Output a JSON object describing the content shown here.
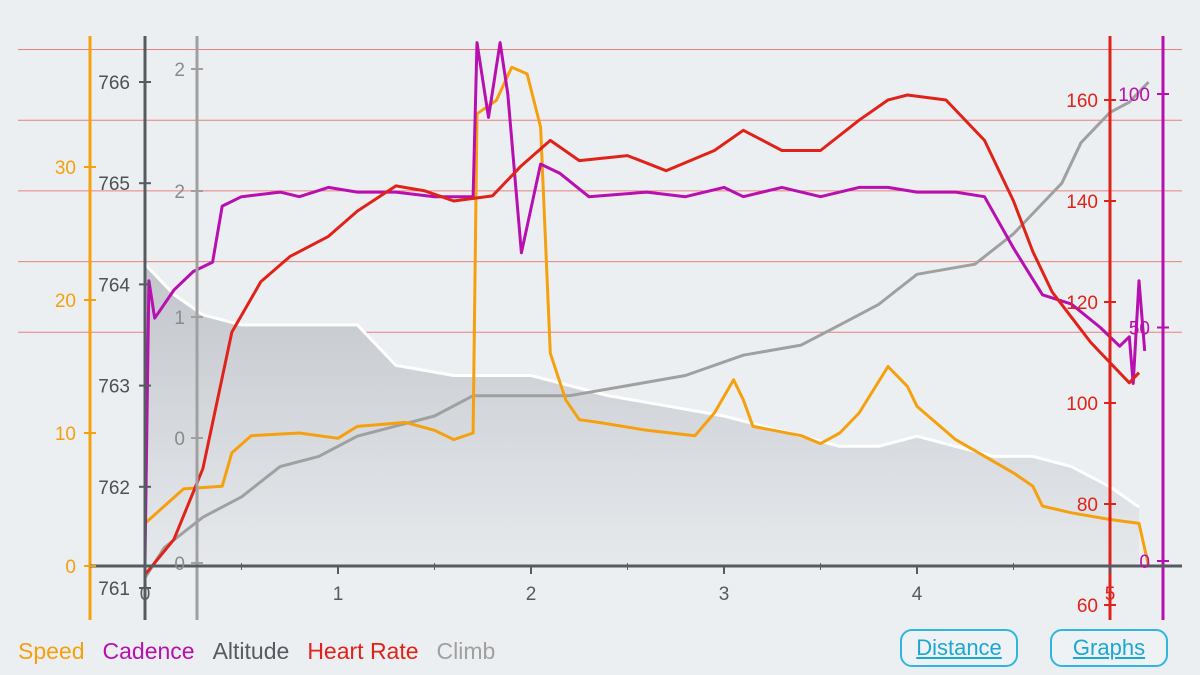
{
  "colors": {
    "speed": "#f5a00f",
    "cadence": "#b80fb0",
    "altitude": "#555b60",
    "heart_rate": "#e0231a",
    "climb": "#a0a0a0",
    "grid_red": "#e88080",
    "background": "#eceff1",
    "button": "#1ba7d6"
  },
  "legend": {
    "speed": "Speed",
    "cadence": "Cadence",
    "altitude": "Altitude",
    "heart_rate": "Heart Rate",
    "climb": "Climb"
  },
  "buttons": {
    "distance": "Distance",
    "graphs": "Graphs"
  },
  "chart_data": {
    "type": "line",
    "x": {
      "ticks": [
        "0",
        "1",
        "2",
        "3",
        "4",
        "5"
      ],
      "range": [
        0,
        5.2
      ]
    },
    "axes": {
      "speed": {
        "ticks": [
          "0",
          "10",
          "20",
          "30"
        ],
        "range": [
          0,
          38
        ]
      },
      "altitude": {
        "ticks": [
          "761",
          "762",
          "763",
          "764",
          "765",
          "766"
        ],
        "range": [
          761,
          766.5
        ]
      },
      "climb": {
        "ticks": [
          "0",
          "0",
          "1",
          "2",
          "2"
        ]
      },
      "heart_rate": {
        "ticks": [
          "60",
          "80",
          "100",
          "120",
          "140",
          "160"
        ],
        "range": [
          60,
          172
        ]
      },
      "cadence": {
        "ticks": [
          "0",
          "50",
          "100"
        ],
        "range": [
          0,
          110
        ]
      }
    },
    "series": [
      {
        "name": "Speed",
        "axis": "speed",
        "points": [
          [
            0,
            3.2
          ],
          [
            0.1,
            4.5
          ],
          [
            0.2,
            5.8
          ],
          [
            0.4,
            6.0
          ],
          [
            0.45,
            8.5
          ],
          [
            0.55,
            9.8
          ],
          [
            0.8,
            10.0
          ],
          [
            1.0,
            9.6
          ],
          [
            1.1,
            10.5
          ],
          [
            1.35,
            10.8
          ],
          [
            1.5,
            10.2
          ],
          [
            1.6,
            9.5
          ],
          [
            1.7,
            10.0
          ],
          [
            1.72,
            34
          ],
          [
            1.82,
            35
          ],
          [
            1.9,
            37.5
          ],
          [
            1.98,
            37
          ],
          [
            2.05,
            33
          ],
          [
            2.1,
            16
          ],
          [
            2.18,
            12.5
          ],
          [
            2.25,
            11
          ],
          [
            2.35,
            10.8
          ],
          [
            2.6,
            10.2
          ],
          [
            2.85,
            9.8
          ],
          [
            2.95,
            11.5
          ],
          [
            3.05,
            14
          ],
          [
            3.1,
            12.5
          ],
          [
            3.15,
            10.5
          ],
          [
            3.4,
            9.8
          ],
          [
            3.5,
            9.2
          ],
          [
            3.6,
            10
          ],
          [
            3.7,
            11.5
          ],
          [
            3.85,
            15
          ],
          [
            3.95,
            13.5
          ],
          [
            4.0,
            12
          ],
          [
            4.2,
            9.5
          ],
          [
            4.5,
            7
          ],
          [
            4.6,
            6
          ],
          [
            4.65,
            4.5
          ],
          [
            4.8,
            4
          ],
          [
            5.0,
            3.5
          ],
          [
            5.15,
            3.2
          ],
          [
            5.2,
            0
          ]
        ]
      },
      {
        "name": "Cadence",
        "axis": "cadence",
        "points": [
          [
            0,
            0
          ],
          [
            0.02,
            60
          ],
          [
            0.05,
            52
          ],
          [
            0.15,
            58
          ],
          [
            0.25,
            62
          ],
          [
            0.35,
            64
          ],
          [
            0.4,
            76
          ],
          [
            0.5,
            78
          ],
          [
            0.7,
            79
          ],
          [
            0.8,
            78
          ],
          [
            0.95,
            80
          ],
          [
            1.1,
            79
          ],
          [
            1.3,
            79
          ],
          [
            1.5,
            78
          ],
          [
            1.7,
            78
          ],
          [
            1.72,
            111
          ],
          [
            1.78,
            95
          ],
          [
            1.84,
            111
          ],
          [
            1.88,
            100
          ],
          [
            1.95,
            66
          ],
          [
            2.05,
            85
          ],
          [
            2.15,
            83
          ],
          [
            2.3,
            78
          ],
          [
            2.6,
            79
          ],
          [
            2.8,
            78
          ],
          [
            3.0,
            80
          ],
          [
            3.1,
            78
          ],
          [
            3.3,
            80
          ],
          [
            3.5,
            78
          ],
          [
            3.7,
            80
          ],
          [
            3.85,
            80
          ],
          [
            4.0,
            79
          ],
          [
            4.2,
            79
          ],
          [
            4.35,
            78
          ],
          [
            4.5,
            67
          ],
          [
            4.65,
            57
          ],
          [
            4.8,
            55
          ],
          [
            4.95,
            50
          ],
          [
            5.05,
            46
          ],
          [
            5.1,
            48
          ],
          [
            5.12,
            38
          ],
          [
            5.15,
            60
          ],
          [
            5.18,
            45
          ]
        ]
      },
      {
        "name": "Altitude",
        "axis": "altitude",
        "points": [
          [
            0,
            764.2
          ],
          [
            0.15,
            763.9
          ],
          [
            0.3,
            763.7
          ],
          [
            0.5,
            763.6
          ],
          [
            0.8,
            763.6
          ],
          [
            1.1,
            763.6
          ],
          [
            1.2,
            763.4
          ],
          [
            1.3,
            763.2
          ],
          [
            1.6,
            763.1
          ],
          [
            1.8,
            763.1
          ],
          [
            2.0,
            763.1
          ],
          [
            2.2,
            763.0
          ],
          [
            2.4,
            762.9
          ],
          [
            2.7,
            762.8
          ],
          [
            3.0,
            762.7
          ],
          [
            3.2,
            762.6
          ],
          [
            3.4,
            762.5
          ],
          [
            3.6,
            762.4
          ],
          [
            3.8,
            762.4
          ],
          [
            4.0,
            762.5
          ],
          [
            4.2,
            762.4
          ],
          [
            4.4,
            762.3
          ],
          [
            4.6,
            762.3
          ],
          [
            4.8,
            762.2
          ],
          [
            5.0,
            762.0
          ],
          [
            5.15,
            761.8
          ]
        ]
      },
      {
        "name": "Heart Rate",
        "axis": "heart_rate",
        "points": [
          [
            0,
            66
          ],
          [
            0.15,
            73
          ],
          [
            0.3,
            87
          ],
          [
            0.45,
            114
          ],
          [
            0.6,
            124
          ],
          [
            0.75,
            129
          ],
          [
            0.95,
            133
          ],
          [
            1.1,
            138
          ],
          [
            1.3,
            143
          ],
          [
            1.45,
            142
          ],
          [
            1.6,
            140
          ],
          [
            1.8,
            141
          ],
          [
            1.95,
            147
          ],
          [
            2.1,
            152
          ],
          [
            2.25,
            148
          ],
          [
            2.5,
            149
          ],
          [
            2.7,
            146
          ],
          [
            2.95,
            150
          ],
          [
            3.1,
            154
          ],
          [
            3.3,
            150
          ],
          [
            3.5,
            150
          ],
          [
            3.7,
            156
          ],
          [
            3.85,
            160
          ],
          [
            3.95,
            161
          ],
          [
            4.15,
            160
          ],
          [
            4.35,
            152
          ],
          [
            4.5,
            140
          ],
          [
            4.6,
            130
          ],
          [
            4.7,
            122
          ],
          [
            4.8,
            117
          ],
          [
            4.9,
            112
          ],
          [
            5.0,
            108
          ],
          [
            5.1,
            104
          ],
          [
            5.15,
            106
          ]
        ]
      },
      {
        "name": "Climb",
        "axis": "altitude",
        "points": [
          [
            0,
            761.1
          ],
          [
            0.1,
            761.4
          ],
          [
            0.3,
            761.7
          ],
          [
            0.5,
            761.9
          ],
          [
            0.7,
            762.2
          ],
          [
            0.9,
            762.3
          ],
          [
            1.1,
            762.5
          ],
          [
            1.3,
            762.6
          ],
          [
            1.5,
            762.7
          ],
          [
            1.7,
            762.9
          ],
          [
            1.8,
            762.9
          ],
          [
            2.0,
            762.9
          ],
          [
            2.2,
            762.9
          ],
          [
            2.5,
            763.0
          ],
          [
            2.8,
            763.1
          ],
          [
            3.1,
            763.3
          ],
          [
            3.4,
            763.4
          ],
          [
            3.6,
            763.6
          ],
          [
            3.8,
            763.8
          ],
          [
            4.0,
            764.1
          ],
          [
            4.3,
            764.2
          ],
          [
            4.5,
            764.5
          ],
          [
            4.65,
            764.8
          ],
          [
            4.75,
            765.0
          ],
          [
            4.85,
            765.4
          ],
          [
            5.0,
            765.7
          ],
          [
            5.1,
            765.8
          ],
          [
            5.2,
            766.0
          ]
        ]
      }
    ]
  }
}
